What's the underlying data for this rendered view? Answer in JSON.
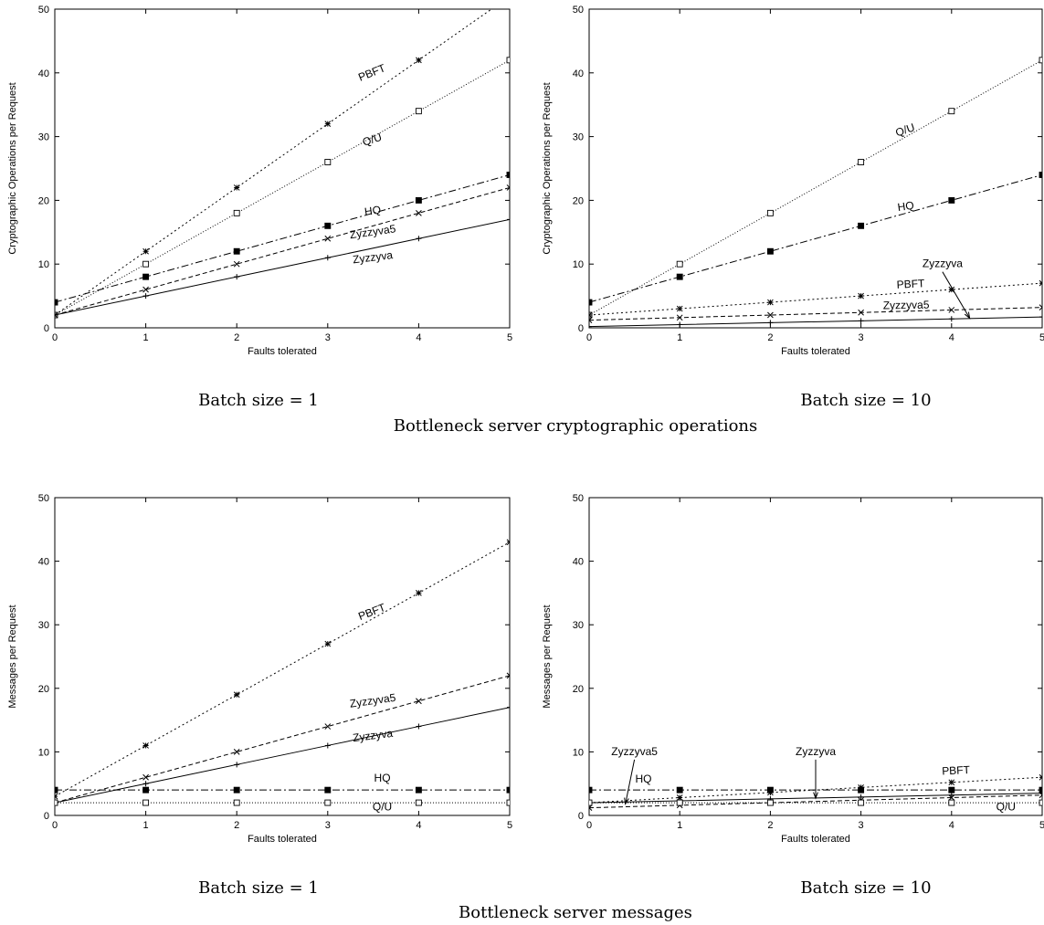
{
  "sections": [
    {
      "title": "Bottleneck server cryptographic operations"
    },
    {
      "title": "Bottleneck server messages"
    }
  ],
  "chart_data": [
    {
      "type": "line",
      "caption": "Batch size = 1",
      "xlabel": "Faults tolerated",
      "ylabel": "Cryptographic Operations per Request",
      "xlim": [
        0,
        5
      ],
      "ylim": [
        0,
        50
      ],
      "x_ticks": [
        "0",
        "1",
        "2",
        "3",
        "4",
        "5"
      ],
      "y_ticks": [
        "0",
        "10",
        "20",
        "30",
        "40",
        "50"
      ],
      "grid": false,
      "series": [
        {
          "name": "PBFT",
          "x": [
            0,
            1,
            2,
            3,
            4,
            5
          ],
          "values": [
            2,
            12,
            22,
            32,
            42,
            52
          ],
          "dash": "2,3",
          "marker": "star"
        },
        {
          "name": "Q/U",
          "x": [
            0,
            1,
            2,
            3,
            4,
            5
          ],
          "values": [
            2,
            10,
            18,
            26,
            34,
            42
          ],
          "dash": "1,2",
          "marker": "open-square"
        },
        {
          "name": "HQ",
          "x": [
            0,
            1,
            2,
            3,
            4,
            5
          ],
          "values": [
            4,
            8,
            12,
            16,
            20,
            24
          ],
          "dash": "8,3,2,3",
          "marker": "filled-square"
        },
        {
          "name": "Zyzzyva5",
          "x": [
            0,
            1,
            2,
            3,
            4,
            5
          ],
          "values": [
            2,
            6,
            10,
            14,
            18,
            22
          ],
          "dash": "5,3",
          "marker": "x"
        },
        {
          "name": "Zyzzyva",
          "x": [
            0,
            1,
            2,
            3,
            4,
            5
          ],
          "values": [
            2,
            5,
            8,
            11,
            14,
            17
          ],
          "dash": "",
          "marker": "plus"
        }
      ],
      "annotations": [
        {
          "text": "PBFT",
          "x": 3.5,
          "y": 39.5,
          "angle": -22
        },
        {
          "text": "Q/U",
          "x": 3.5,
          "y": 29,
          "angle": -18
        },
        {
          "text": "HQ",
          "x": 3.5,
          "y": 17.8,
          "angle": -8
        },
        {
          "text": "Zyzzyva5",
          "x": 3.5,
          "y": 14.5,
          "angle": -8
        },
        {
          "text": "Zyzzyva",
          "x": 3.5,
          "y": 10.5,
          "angle": -7
        }
      ]
    },
    {
      "type": "line",
      "caption": "Batch size = 10",
      "xlabel": "Faults tolerated",
      "ylabel": "Cryptographic Operations per Request",
      "xlim": [
        0,
        5
      ],
      "ylim": [
        0,
        50
      ],
      "x_ticks": [
        "0",
        "1",
        "2",
        "3",
        "4",
        "5"
      ],
      "y_ticks": [
        "0",
        "10",
        "20",
        "30",
        "40",
        "50"
      ],
      "grid": false,
      "series": [
        {
          "name": "Q/U",
          "x": [
            0,
            1,
            2,
            3,
            4,
            5
          ],
          "values": [
            2,
            10,
            18,
            26,
            34,
            42
          ],
          "dash": "1,2",
          "marker": "open-square"
        },
        {
          "name": "HQ",
          "x": [
            0,
            1,
            2,
            3,
            4,
            5
          ],
          "values": [
            4,
            8,
            12,
            16,
            20,
            24
          ],
          "dash": "8,3,2,3",
          "marker": "filled-square"
        },
        {
          "name": "PBFT",
          "x": [
            0,
            1,
            2,
            3,
            4,
            5
          ],
          "values": [
            2,
            3,
            4,
            5,
            6,
            7
          ],
          "dash": "2,3",
          "marker": "star"
        },
        {
          "name": "Zyzzyva5",
          "x": [
            0,
            1,
            2,
            3,
            4,
            5
          ],
          "values": [
            1.2,
            1.6,
            2,
            2.4,
            2.8,
            3.2
          ],
          "dash": "5,3",
          "marker": "x"
        },
        {
          "name": "Zyzzyva",
          "x": [
            0,
            1,
            2,
            3,
            4,
            5
          ],
          "values": [
            0.2,
            0.5,
            0.8,
            1.1,
            1.4,
            1.7
          ],
          "dash": "",
          "marker": "plus"
        }
      ],
      "annotations": [
        {
          "text": "Q/U",
          "x": 3.5,
          "y": 30.5,
          "angle": -19
        },
        {
          "text": "HQ",
          "x": 3.5,
          "y": 18.5,
          "angle": -8
        },
        {
          "text": "PBFT",
          "x": 3.55,
          "y": 6.3,
          "angle": -3
        },
        {
          "text": "Zyzzyva5",
          "x": 3.5,
          "y": 3,
          "angle": -1
        },
        {
          "text": "Zyzzyva",
          "x": 3.9,
          "y": 9.5,
          "angle": 0,
          "arrow_to": [
            4.2,
            1.5
          ]
        }
      ]
    },
    {
      "type": "line",
      "caption": "Batch size = 1",
      "xlabel": "Faults tolerated",
      "ylabel": "Messages per Request",
      "xlim": [
        0,
        5
      ],
      "ylim": [
        0,
        50
      ],
      "x_ticks": [
        "0",
        "1",
        "2",
        "3",
        "4",
        "5"
      ],
      "y_ticks": [
        "0",
        "10",
        "20",
        "30",
        "40",
        "50"
      ],
      "grid": false,
      "series": [
        {
          "name": "PBFT",
          "x": [
            0,
            1,
            2,
            3,
            4,
            5
          ],
          "values": [
            3,
            11,
            19,
            27,
            35,
            43
          ],
          "dash": "2,3",
          "marker": "star"
        },
        {
          "name": "Zyzzyva5",
          "x": [
            0,
            1,
            2,
            3,
            4,
            5
          ],
          "values": [
            2,
            6,
            10,
            14,
            18,
            22
          ],
          "dash": "5,3",
          "marker": "x"
        },
        {
          "name": "Zyzzyva",
          "x": [
            0,
            1,
            2,
            3,
            4,
            5
          ],
          "values": [
            2,
            5,
            8,
            11,
            14,
            17
          ],
          "dash": "",
          "marker": "plus"
        },
        {
          "name": "HQ",
          "x": [
            0,
            1,
            2,
            3,
            4,
            5
          ],
          "values": [
            4,
            4,
            4,
            4,
            4,
            4
          ],
          "dash": "8,3,2,3",
          "marker": "filled-square"
        },
        {
          "name": "Q/U",
          "x": [
            0,
            1,
            2,
            3,
            4,
            5
          ],
          "values": [
            2,
            2,
            2,
            2,
            2,
            2
          ],
          "dash": "1,2",
          "marker": "open-square"
        }
      ],
      "annotations": [
        {
          "text": "PBFT",
          "x": 3.5,
          "y": 31.5,
          "angle": -21
        },
        {
          "text": "Zyzzyva5",
          "x": 3.5,
          "y": 17.5,
          "angle": -8
        },
        {
          "text": "Zyzzyva",
          "x": 3.5,
          "y": 12,
          "angle": -7
        },
        {
          "text": "HQ",
          "x": 3.6,
          "y": 5.3,
          "angle": 0
        },
        {
          "text": "Q/U",
          "x": 3.6,
          "y": 0.8,
          "angle": 0
        }
      ]
    },
    {
      "type": "line",
      "caption": "Batch size = 10",
      "xlabel": "Faults tolerated",
      "ylabel": "Messages per Request",
      "xlim": [
        0,
        5
      ],
      "ylim": [
        0,
        50
      ],
      "x_ticks": [
        "0",
        "1",
        "2",
        "3",
        "4",
        "5"
      ],
      "y_ticks": [
        "0",
        "10",
        "20",
        "30",
        "40",
        "50"
      ],
      "grid": false,
      "series": [
        {
          "name": "HQ",
          "x": [
            0,
            1,
            2,
            3,
            4,
            5
          ],
          "values": [
            4,
            4,
            4,
            4,
            4,
            4
          ],
          "dash": "8,3,2,3",
          "marker": "filled-square"
        },
        {
          "name": "PBFT",
          "x": [
            0,
            1,
            2,
            3,
            4,
            5
          ],
          "values": [
            2,
            2.8,
            3.6,
            4.4,
            5.2,
            6
          ],
          "dash": "2,3",
          "marker": "star"
        },
        {
          "name": "Zyzzyva",
          "x": [
            0,
            1,
            2,
            3,
            4,
            5
          ],
          "values": [
            2,
            2.3,
            2.6,
            2.9,
            3.2,
            3.5
          ],
          "dash": "",
          "marker": "plus"
        },
        {
          "name": "Zyzzyva5",
          "x": [
            0,
            1,
            2,
            3,
            4,
            5
          ],
          "values": [
            1.2,
            1.6,
            2,
            2.4,
            2.8,
            3.2
          ],
          "dash": "5,3",
          "marker": "x"
        },
        {
          "name": "Q/U",
          "x": [
            0,
            1,
            2,
            3,
            4,
            5
          ],
          "values": [
            2,
            2,
            2,
            2,
            2,
            2
          ],
          "dash": "1,2",
          "marker": "open-square"
        }
      ],
      "annotations": [
        {
          "text": "Zyzzyva5",
          "x": 0.5,
          "y": 9.5,
          "angle": 0,
          "arrow_to": [
            0.4,
            1.8
          ]
        },
        {
          "text": "HQ",
          "x": 0.6,
          "y": 5.2,
          "angle": 0
        },
        {
          "text": "Zyzzyva",
          "x": 2.5,
          "y": 9.5,
          "angle": 0,
          "arrow_to": [
            2.5,
            2.7
          ]
        },
        {
          "text": "PBFT",
          "x": 4.05,
          "y": 6.5,
          "angle": -3
        },
        {
          "text": "Q/U",
          "x": 4.6,
          "y": 0.8,
          "angle": 0
        }
      ]
    }
  ]
}
